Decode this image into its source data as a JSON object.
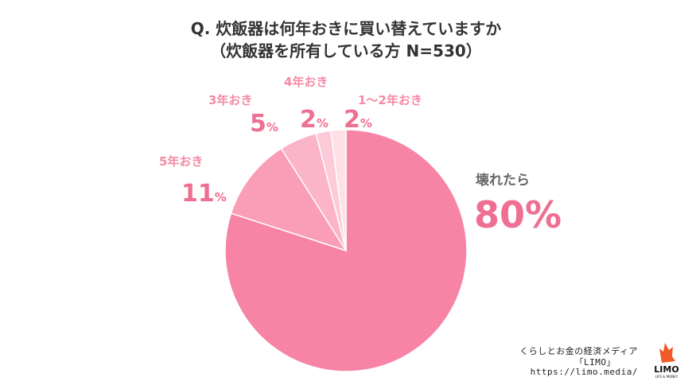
{
  "title": {
    "line1": "Q. 炊飯器は何年おきに買い替えていますか",
    "line2": "（炊飯器を所有している方 N=530）"
  },
  "chart_data": {
    "type": "pie",
    "start_angle_deg": 0,
    "direction": "clockwise",
    "slices": [
      {
        "label": "壊れたら",
        "value": 80,
        "color": "#f783a5"
      },
      {
        "label": "5年おき",
        "value": 11,
        "color": "#fa9db6"
      },
      {
        "label": "3年おき",
        "value": 5,
        "color": "#fbb4c9"
      },
      {
        "label": "4年おき",
        "value": 2,
        "color": "#fdcad9"
      },
      {
        "label": "1～2年おき",
        "value": 2,
        "color": "#fde0e8"
      }
    ],
    "label_color": "#f48aa5",
    "label_color_main": "#ee6f92",
    "label_color_main_category": "#666666",
    "value_suffix": "%"
  },
  "credit": {
    "line1": "くらしとお金の経済メディア",
    "line2": "「LIMO」",
    "line3": "https://limo.media/"
  },
  "logo": {
    "name": "LIMO",
    "sub": "LIFE & MONEY",
    "color": "#f05a28"
  }
}
